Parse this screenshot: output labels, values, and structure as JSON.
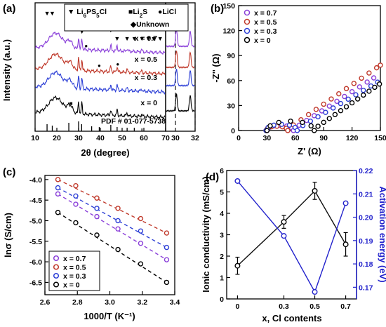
{
  "colors": {
    "x07": "#8a3fd9",
    "x05": "#c0392b",
    "x03": "#2d3fd6",
    "x0": "#000000",
    "bar": "#111111",
    "activation": "#2222cc"
  },
  "chart_data": [
    {
      "id": "a",
      "type": "line",
      "panel_label": "(a)",
      "xlabel": "2θ (degree)",
      "ylabel": "Intensity (a.u.)",
      "xlim": [
        10,
        70
      ],
      "xticks": [
        "10",
        "20",
        "30",
        "40",
        "50",
        "60",
        "70"
      ],
      "inset_xlim": [
        29,
        32
      ],
      "inset_xticks": [
        "30",
        "32"
      ],
      "legend": {
        "items": [
          {
            "marker": "▼",
            "label": "Li6PS5Cl",
            "main": "Li",
            "sub1": "6",
            "mid": "PS",
            "sub2": "5",
            "tail": "Cl"
          },
          {
            "marker": "■",
            "label": "Li2S",
            "main": "Li",
            "sub1": "2",
            "tail": "S"
          },
          {
            "marker": "●",
            "label": "LiCl"
          },
          {
            "marker": "◆",
            "label": "Unknown"
          }
        ]
      },
      "reference_label": "PDF # 01-077-5738",
      "reference_peaks": [
        15.5,
        17.9,
        25.5,
        30.0,
        31.4,
        36.0,
        39.5,
        44.8,
        47.7,
        52.3,
        55.6,
        59.1
      ],
      "series": [
        {
          "name": "x = 0.7",
          "color_key": "x07",
          "offset": 3
        },
        {
          "name": "x = 0.5",
          "color_key": "x05",
          "offset": 2
        },
        {
          "name": "x = 0.3",
          "color_key": "x03",
          "offset": 1
        },
        {
          "name": "x = 0",
          "color_key": "x0",
          "offset": 0
        }
      ]
    },
    {
      "id": "b",
      "type": "scatter",
      "panel_label": "(b)",
      "xlabel": "Z' (Ω)",
      "ylabel": "-Z'' (Ω)",
      "xlim": [
        0,
        150
      ],
      "ylim": [
        0,
        150
      ],
      "xticks": [
        "0",
        "30",
        "60",
        "90",
        "120",
        "150"
      ],
      "yticks": [
        "0",
        "30",
        "60",
        "90",
        "120",
        "150"
      ],
      "legend_position": "top-left",
      "series": [
        {
          "name": "x = 0.7",
          "color_key": "x07",
          "r0": 30,
          "r1": 58,
          "tail_x": [
            64,
            72,
            80,
            88,
            96,
            104,
            112,
            120,
            128,
            136,
            143
          ],
          "tail_slope": 0.72
        },
        {
          "name": "x = 0.5",
          "color_key": "x05",
          "r0": 29,
          "r1": 52,
          "tail_x": [
            58,
            66,
            74,
            82,
            90,
            98,
            106,
            114,
            122,
            130,
            138,
            146,
            150
          ],
          "tail_slope": 0.78
        },
        {
          "name": "x = 0.3",
          "color_key": "x03",
          "r0": 29,
          "r1": 62,
          "tail_x": [
            68,
            76,
            84,
            92,
            100,
            108,
            116,
            124,
            132,
            140,
            147
          ],
          "tail_slope": 0.66
        },
        {
          "name": "x = 0",
          "color_key": "x0",
          "r0": 30,
          "r1": 80,
          "tail_x": [
            84,
            90,
            96,
            102,
            108,
            114,
            120,
            126,
            132,
            138,
            144,
            149
          ],
          "tail_slope": 0.78
        }
      ]
    },
    {
      "id": "c",
      "type": "line",
      "panel_label": "(c)",
      "xlabel": "1000/T (K⁻¹)",
      "ylabel": "lnσ (S/cm)",
      "xlim": [
        2.6,
        3.4
      ],
      "ylim": [
        -6.8,
        -3.9
      ],
      "xticks": [
        "2.6",
        "2.8",
        "3.0",
        "3.2",
        "3.4"
      ],
      "yticks": [
        "-4.0",
        "-4.5",
        "-5.0",
        "-5.5",
        "-6.0",
        "-6.5"
      ],
      "legend_position": "bottom-left",
      "x": [
        2.68,
        2.79,
        2.92,
        3.05,
        3.19,
        3.35
      ],
      "series": [
        {
          "name": "x = 0.7",
          "color_key": "x07",
          "values": [
            -4.35,
            -4.6,
            -4.9,
            -5.2,
            -5.55,
            -5.95
          ]
        },
        {
          "name": "x = 0.5",
          "color_key": "x05",
          "values": [
            -4.0,
            -4.15,
            -4.45,
            -4.7,
            -4.95,
            -5.3
          ]
        },
        {
          "name": "x = 0.3",
          "color_key": "x03",
          "values": [
            -4.2,
            -4.4,
            -4.7,
            -5.0,
            -5.25,
            -5.65
          ]
        },
        {
          "name": "x = 0",
          "color_key": "x0",
          "values": [
            -4.8,
            -5.05,
            -5.35,
            -5.7,
            -6.05,
            -6.5
          ]
        }
      ]
    },
    {
      "id": "d",
      "type": "line",
      "panel_label": "(d)",
      "xlabel": "x, Cl contents",
      "ylabel_left": "Ionic conductivity (mS/cm)",
      "ylabel_right": "Activation energy (eV)",
      "xlim": [
        -0.07,
        0.77
      ],
      "ylim_left": [
        0,
        6
      ],
      "ylim_right": [
        0.165,
        0.22
      ],
      "x": [
        0,
        0.3,
        0.5,
        0.7
      ],
      "xticks": [
        "0",
        "0.3",
        "0.5",
        "0.7"
      ],
      "yticks_left": [
        "0",
        "1",
        "2",
        "3",
        "4",
        "5",
        "6"
      ],
      "yticks_right": [
        "0.17",
        "0.18",
        "0.19",
        "0.20",
        "0.21",
        "0.22"
      ],
      "series": [
        {
          "name": "Ionic conductivity",
          "axis": "left",
          "color_key": "bar",
          "values": [
            1.55,
            3.6,
            5.05,
            2.55
          ],
          "errors": [
            0.4,
            0.3,
            0.4,
            0.55
          ]
        },
        {
          "name": "Activation energy",
          "axis": "right",
          "color_key": "activation",
          "values": [
            0.2155,
            0.192,
            0.168,
            0.206
          ]
        }
      ]
    }
  ]
}
